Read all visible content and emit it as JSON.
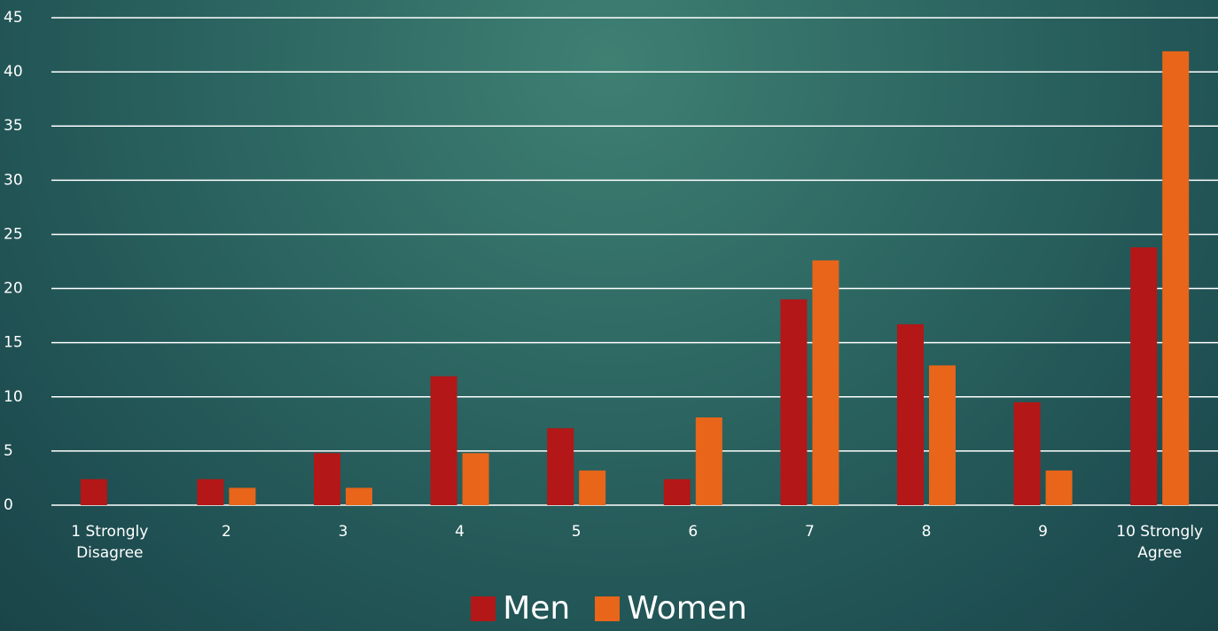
{
  "chart_data": {
    "type": "bar",
    "categories": [
      "1 Strongly Disagree",
      "2",
      "3",
      "4",
      "5",
      "6",
      "7",
      "8",
      "9",
      "10 Strongly Agree"
    ],
    "series": [
      {
        "name": "Men",
        "color": "#b31717",
        "values": [
          2.4,
          2.4,
          4.8,
          11.9,
          7.1,
          2.4,
          19,
          16.7,
          9.5,
          23.8
        ]
      },
      {
        "name": "Women",
        "color": "#e8651a",
        "values": [
          0,
          1.6,
          1.6,
          4.8,
          3.2,
          8.1,
          22.6,
          12.9,
          3.2,
          41.9
        ]
      }
    ],
    "ylim": [
      0,
      45
    ],
    "yticks": [
      0,
      5,
      10,
      15,
      20,
      25,
      30,
      35,
      40,
      45
    ],
    "grid": true,
    "legend": "bottom"
  }
}
